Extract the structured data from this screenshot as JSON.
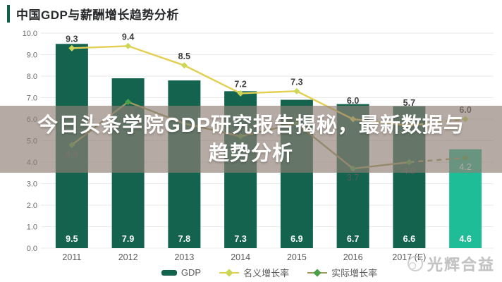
{
  "header": {
    "title": "中国GDP与薪酬增长趋势分析"
  },
  "banner": {
    "line1": "今日头条学院GDP研究报告揭秘，最新数据与",
    "line2": "趋势分析"
  },
  "legend": {
    "gdp_label": "GDP",
    "nominal_label": "名义增长率",
    "real_label": "实际增长率"
  },
  "watermark": {
    "text": "光辉合益"
  },
  "colors": {
    "bar": "#14634f",
    "bar_forecast": "#1fbd97",
    "nominal_line": "#e3cf52",
    "nominal_marker": "#ccd855",
    "real_line": "#9b9b5e",
    "real_marker": "#4aa147",
    "grid": "#eaeaea",
    "axis_text": "#6e6e6e",
    "label_dark": "#3d3d3d",
    "label_mid": "#5a5a5a"
  },
  "chart_data": {
    "type": "bar",
    "subtype": "bar-line-combo",
    "categories": [
      "2011",
      "2012",
      "2013",
      "2014",
      "2015",
      "2016",
      "2017 (E)",
      ""
    ],
    "y_axis": {
      "min": 0,
      "max": 10,
      "step": 1,
      "tick_labels": [
        "0.0",
        "1.0",
        "2.0",
        "3.0",
        "4.0",
        "5.0",
        "6.0",
        "7.0",
        "8.0",
        "9.0",
        "10.0"
      ]
    },
    "series": [
      {
        "name": "GDP",
        "type": "bar",
        "values": [
          9.5,
          7.9,
          7.8,
          7.3,
          6.9,
          6.7,
          6.6,
          4.6
        ],
        "labels": [
          "9.5",
          "7.9",
          "7.8",
          "7.3",
          "6.9",
          "6.7",
          "6.6",
          "4.6"
        ],
        "forecast_index": 7
      },
      {
        "name": "名义增长率",
        "type": "line",
        "values": [
          9.3,
          9.4,
          8.5,
          7.2,
          7.3,
          6.0,
          5.7,
          6.0
        ],
        "labels": [
          "9.3",
          "9.4",
          "8.5",
          "7.2",
          "7.3",
          "6.0",
          "5.7",
          "6.0"
        ],
        "dashed_from_index": 6
      },
      {
        "name": "实际增长率",
        "type": "line",
        "values": [
          4.8,
          6.8,
          5.8,
          5.2,
          5.8,
          3.7,
          4.0,
          4.2
        ],
        "labels": [
          "4.8",
          "6.8",
          "",
          "",
          "",
          "3.7",
          "4.0",
          "4.2"
        ],
        "dashed_from_index": 6
      }
    ],
    "grid": true,
    "legend_position": "bottom",
    "title": "中国GDP与薪酬增长趋势分析"
  }
}
